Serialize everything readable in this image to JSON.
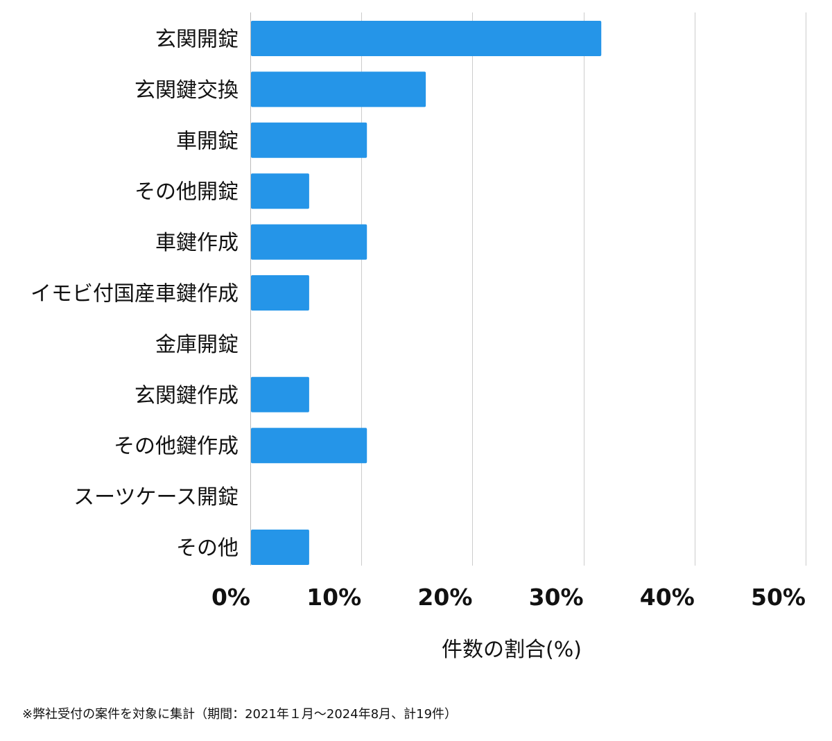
{
  "chart_data": {
    "type": "bar",
    "orientation": "horizontal",
    "categories": [
      "玄関開錠",
      "玄関鍵交換",
      "車開錠",
      "その他開錠",
      "車鍵作成",
      "イモビ付国産車鍵作成",
      "金庫開錠",
      "玄関鍵作成",
      "その他鍵作成",
      "スーツケース開錠",
      "その他"
    ],
    "values": [
      31.6,
      15.8,
      10.5,
      5.3,
      10.5,
      5.3,
      0,
      5.3,
      10.5,
      0,
      5.3
    ],
    "xlim": [
      0,
      50
    ],
    "xticks": [
      0,
      10,
      20,
      30,
      40,
      50
    ],
    "tick_labels": [
      "0%",
      "10%",
      "20%",
      "30%",
      "40%",
      "50%"
    ],
    "xlabel": "件数の割合(%)",
    "ylabel": "",
    "title": "",
    "grid": true,
    "bar_color": "#2595e8"
  },
  "footnote": "※弊社受付の案件を対象に集計（期間：2021年１月〜2024年8月、計19件）"
}
